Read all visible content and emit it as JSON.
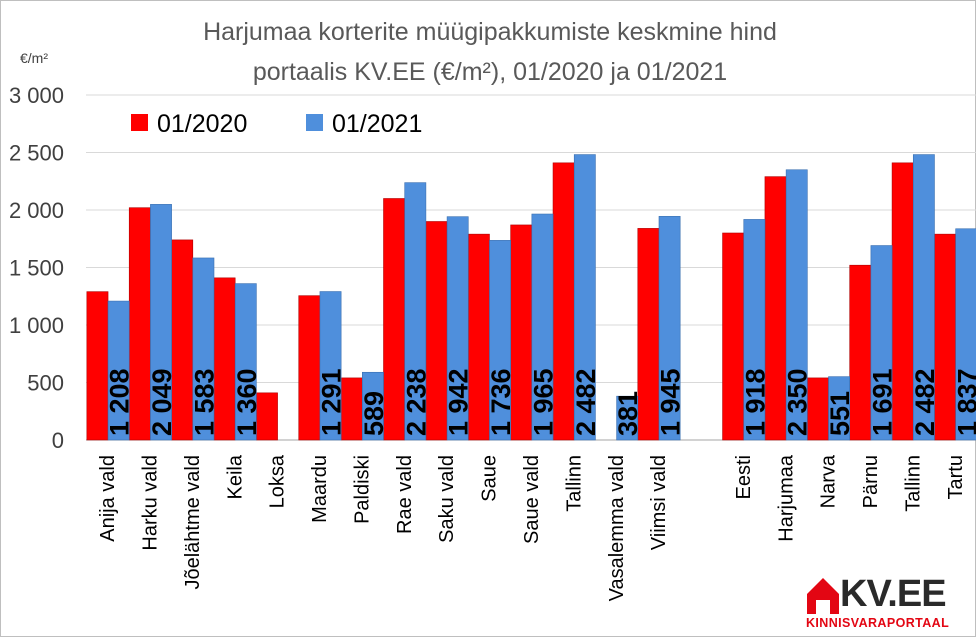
{
  "chart_data": {
    "type": "bar",
    "title_lines": [
      "Harjumaa korterite müügipakkumiste keskmine hind",
      "portaalis KV.EE (€/m²), 01/2020 ja 01/2021"
    ],
    "ylabel": "€/m²",
    "xlabel": "",
    "ylim": [
      0,
      3000
    ],
    "yticks": [
      0,
      500,
      1000,
      1500,
      2000,
      2500,
      3000
    ],
    "ytick_labels": [
      "0",
      "500",
      "1 000",
      "1 500",
      "2 000",
      "2 500",
      "3 000"
    ],
    "grid": true,
    "legend_position": "top-left",
    "categories": [
      "Anija vald",
      "Harku vald",
      "Jõelähtme vald",
      "Keila",
      "Loksa",
      "Maardu",
      "Paldiski",
      "Rae vald",
      "Saku vald",
      "Saue",
      "Saue vald",
      "Tallinn",
      "Vasalemma vald",
      "Viimsi vald",
      "",
      "Eesti",
      "Harjumaa",
      "Narva",
      "Pärnu",
      "Tallinn",
      "Tartu"
    ],
    "series": [
      {
        "name": "01/2020",
        "color": "#ff0000",
        "values": [
          1290,
          2020,
          1740,
          1410,
          410,
          1255,
          540,
          2100,
          1900,
          1790,
          1870,
          2410,
          null,
          1840,
          null,
          1800,
          2290,
          540,
          1520,
          2410,
          1790
        ]
      },
      {
        "name": "01/2021",
        "color": "#4f8fdc",
        "values": [
          1208,
          2049,
          1583,
          1360,
          null,
          1291,
          589,
          2238,
          1942,
          1736,
          1965,
          2482,
          381,
          1945,
          null,
          1918,
          2350,
          551,
          1691,
          2482,
          1837
        ]
      }
    ],
    "data_labels": [
      "1 208",
      "2 049",
      "1 583",
      "1 360",
      "",
      "1 291",
      "589",
      "2 238",
      "1 942",
      "1 736",
      "1 965",
      "2 482",
      "381",
      "1 945",
      "",
      "1 918",
      "2 350",
      "551",
      "1 691",
      "2 482",
      "1 837"
    ]
  },
  "logo": {
    "text": "KV.EE",
    "subtitle": "KINNISVARAPORTAAL",
    "color": "#e30613"
  }
}
